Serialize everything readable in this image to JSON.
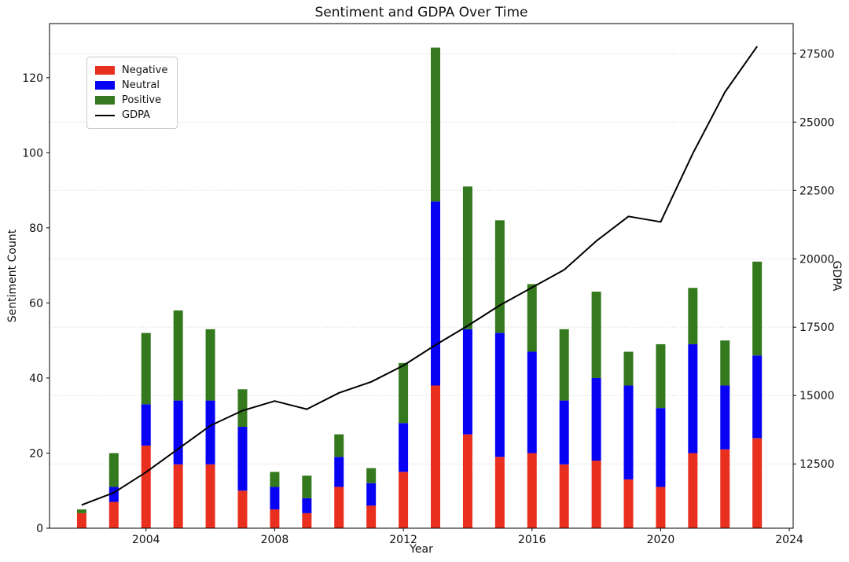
{
  "chart_data": {
    "type": "bar",
    "subtype": "stacked-bars-with-secondary-axis-line",
    "title": "Sentiment and GDPA Over Time",
    "xlabel": "Year",
    "ylabel_left": "Sentiment Count",
    "ylabel_right": "GDPA",
    "categories": [
      2002,
      2003,
      2004,
      2005,
      2006,
      2007,
      2008,
      2009,
      2010,
      2011,
      2012,
      2013,
      2014,
      2015,
      2016,
      2017,
      2018,
      2019,
      2020,
      2021,
      2022,
      2023
    ],
    "series": [
      {
        "name": "Negative",
        "color": "#e92f1d",
        "values": [
          4,
          7,
          22,
          17,
          17,
          10,
          5,
          4,
          11,
          6,
          15,
          38,
          25,
          19,
          20,
          17,
          18,
          13,
          11,
          20,
          21,
          24
        ]
      },
      {
        "name": "Neutral",
        "color": "#0703f2",
        "values": [
          0,
          4,
          11,
          17,
          17,
          17,
          6,
          4,
          8,
          6,
          13,
          49,
          28,
          33,
          27,
          17,
          22,
          25,
          21,
          29,
          17,
          22
        ]
      },
      {
        "name": "Positive",
        "color": "#35791f",
        "values": [
          1,
          9,
          19,
          24,
          19,
          10,
          4,
          6,
          6,
          4,
          16,
          41,
          38,
          30,
          18,
          19,
          23,
          9,
          17,
          15,
          12,
          25
        ]
      }
    ],
    "bar_totals": [
      5,
      20,
      52,
      58,
      53,
      37,
      15,
      14,
      25,
      16,
      44,
      128,
      91,
      82,
      65,
      53,
      63,
      47,
      49,
      64,
      50,
      71
    ],
    "line_series": {
      "name": "GDPA",
      "color": "#000000",
      "values": [
        11000,
        11450,
        12200,
        13050,
        13900,
        14450,
        14800,
        14500,
        15100,
        15500,
        16100,
        16850,
        17550,
        18300,
        18950,
        19600,
        20650,
        21550,
        21350,
        23850,
        26100,
        27770
      ]
    },
    "x_ticks": [
      2004,
      2008,
      2012,
      2016,
      2020,
      2024
    ],
    "y_ticks_left": [
      0,
      20,
      40,
      60,
      80,
      100,
      120
    ],
    "y_ticks_right": [
      12500,
      15000,
      17500,
      20000,
      22500,
      25000,
      27500
    ],
    "xlim": [
      2001.0,
      2024.12
    ],
    "ylim_left": [
      0,
      134.4
    ],
    "ylim_right": [
      10150,
      28600
    ],
    "grid": "horizontal dotted gridlines at right-axis ticks",
    "grid_color": "#c9c9c9",
    "legend_position": "upper left",
    "legend_labels": [
      "Negative",
      "Neutral",
      "Positive",
      "GDPA"
    ]
  }
}
